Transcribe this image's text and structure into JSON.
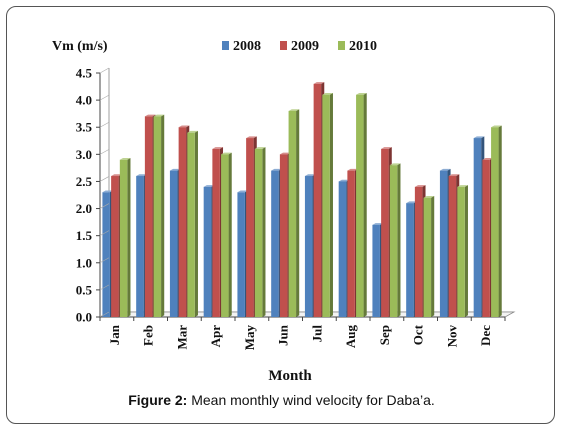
{
  "chart_data": {
    "type": "bar",
    "title": "",
    "ylabel": "Vm (m/s)",
    "xlabel": "Month",
    "ylim": [
      0,
      4.5
    ],
    "yticks": [
      "0.0",
      "0.5",
      "1.0",
      "1.5",
      "2.0",
      "2.5",
      "3.0",
      "3.5",
      "4.0",
      "4.5"
    ],
    "categories": [
      "Jan",
      "Feb",
      "Mar",
      "Apr",
      "May",
      "Jun",
      "Jul",
      "Aug",
      "Sep",
      "Oct",
      "Nov",
      "Dec"
    ],
    "series": [
      {
        "name": "2008",
        "color": "#4f81bd",
        "values": [
          2.3,
          2.6,
          2.7,
          2.4,
          2.3,
          2.7,
          2.6,
          2.5,
          1.7,
          2.1,
          2.7,
          3.3
        ]
      },
      {
        "name": "2009",
        "color": "#c0504d",
        "values": [
          2.6,
          3.7,
          3.5,
          3.1,
          3.3,
          3.0,
          4.3,
          2.7,
          3.1,
          2.4,
          2.6,
          2.9
        ]
      },
      {
        "name": "2010",
        "color": "#9bbb59",
        "values": [
          2.9,
          3.7,
          3.4,
          3.0,
          3.1,
          3.8,
          4.1,
          4.1,
          2.8,
          2.2,
          2.4,
          3.5
        ]
      }
    ],
    "grid": false,
    "legend_position": "top"
  },
  "caption": {
    "label": "Figure 2:",
    "text": " Mean monthly wind velocity for Daba’a."
  }
}
